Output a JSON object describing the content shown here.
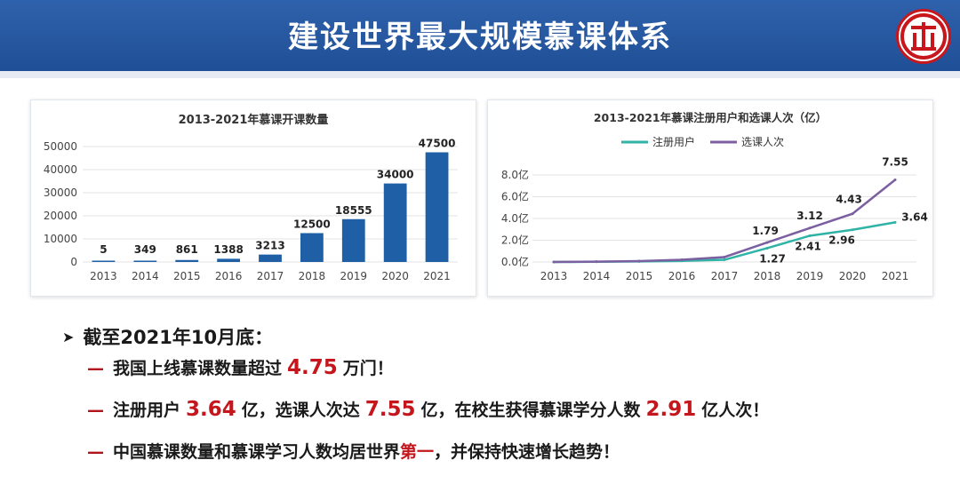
{
  "header": {
    "title": "建设世界最大规模慕课体系",
    "logo_icon": "red-circle-emblem"
  },
  "chart_data": [
    {
      "type": "bar",
      "title": "2013-2021年慕课开课数量",
      "categories": [
        "2013",
        "2014",
        "2015",
        "2016",
        "2017",
        "2018",
        "2019",
        "2020",
        "2021"
      ],
      "values": [
        5,
        349,
        861,
        1388,
        3213,
        12500,
        18555,
        34000,
        47500
      ],
      "ylim": [
        0,
        50000
      ],
      "yticks": [
        "0",
        "10000",
        "20000",
        "30000",
        "40000",
        "50000"
      ],
      "grid": true,
      "bar_color": "#1f5fa6"
    },
    {
      "type": "line",
      "title": "2013-2021年慕课注册用户和选课人次（亿）",
      "categories": [
        "2013",
        "2014",
        "2015",
        "2016",
        "2017",
        "2018",
        "2019",
        "2020",
        "2021"
      ],
      "ylim": [
        0,
        8
      ],
      "yticks": [
        "0.0亿",
        "2.0亿",
        "4.0亿",
        "6.0亿",
        "8.0亿"
      ],
      "legend_position": "top",
      "series": [
        {
          "name": "注册用户",
          "color": "#2fb3a6",
          "values": [
            0,
            0.02,
            0.05,
            0.1,
            0.2,
            1.27,
            2.41,
            2.96,
            3.64
          ],
          "labels": [
            "",
            "",
            "",
            "",
            "",
            "1.27",
            "2.41",
            "2.96",
            "3.64"
          ]
        },
        {
          "name": "选课人次",
          "color": "#7b5fa0",
          "values": [
            0,
            0.03,
            0.08,
            0.2,
            0.45,
            1.79,
            3.12,
            4.43,
            7.55
          ],
          "labels": [
            "",
            "",
            "",
            "",
            "",
            "1.79",
            "3.12",
            "4.43",
            "7.55"
          ]
        }
      ]
    }
  ],
  "summary": {
    "heading": "截至2021年10月底：",
    "line1": {
      "pre": "我国上线慕课数量超过",
      "num": "4.75",
      "post": "万门！"
    },
    "line2": {
      "pre": "注册用户",
      "num1": "3.64",
      "mid1": "亿，选课人次达",
      "num2": "7.55",
      "mid2": "亿，在校生获得慕课学分人数",
      "num3": "2.91",
      "post": "亿人次！"
    },
    "line3": {
      "pre": "中国慕课数量和慕课学习人数均居世界",
      "hl": "第一",
      "post": "，并保持快速增长趋势！"
    },
    "dash": "—"
  }
}
